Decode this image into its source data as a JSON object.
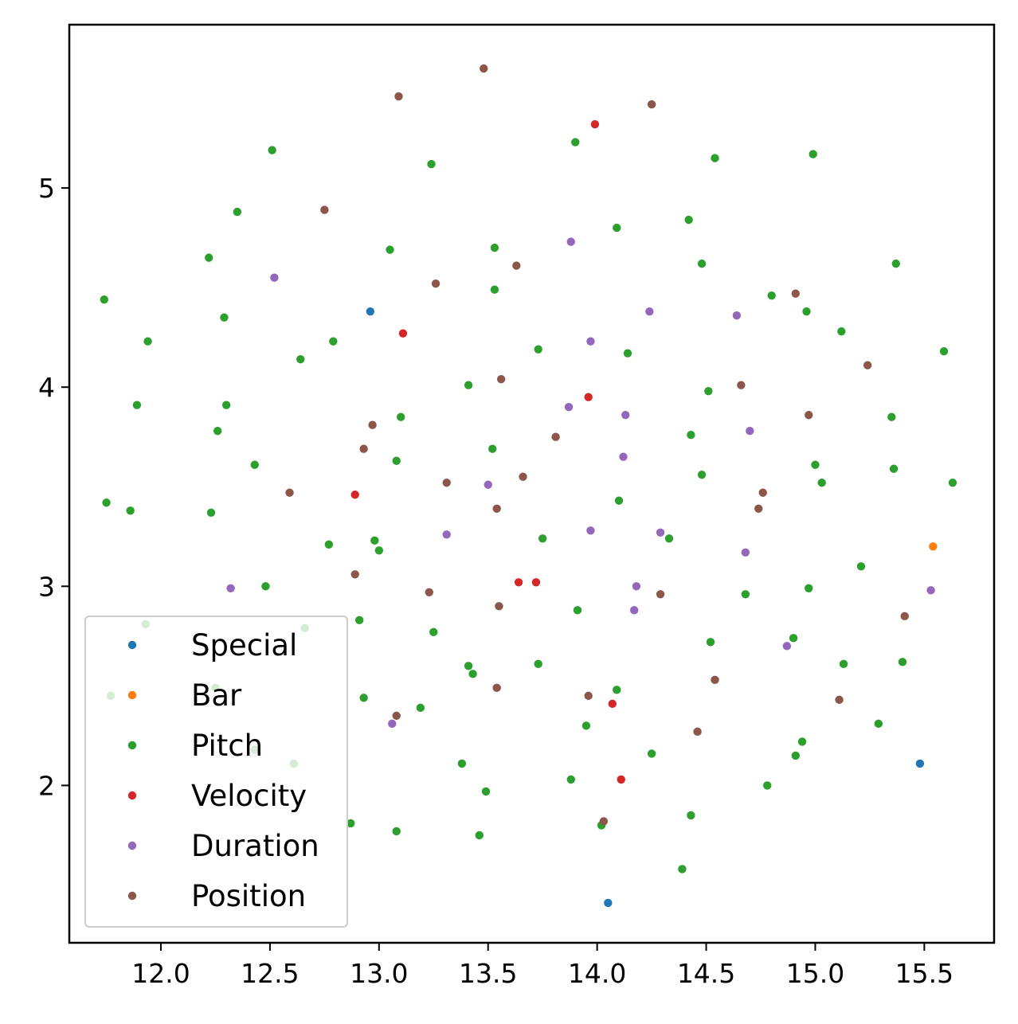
{
  "chart_data": {
    "type": "scatter",
    "title": "",
    "xlabel": "",
    "ylabel": "",
    "xlim": [
      11.58,
      15.82
    ],
    "ylim": [
      1.21,
      5.82
    ],
    "xticks": [
      "12.0",
      "12.5",
      "13.0",
      "13.5",
      "14.0",
      "14.5",
      "15.0",
      "15.5"
    ],
    "yticks": [
      "2",
      "3",
      "4",
      "5"
    ],
    "grid": false,
    "legend_position": "lower-left",
    "series": [
      {
        "name": "Special",
        "color": "#1f77b4",
        "points": [
          [
            12.96,
            4.38
          ],
          [
            15.48,
            2.11
          ],
          [
            14.05,
            1.41
          ]
        ]
      },
      {
        "name": "Bar",
        "color": "#ff7f0e",
        "points": [
          [
            15.54,
            3.2
          ]
        ]
      },
      {
        "name": "Pitch",
        "color": "#2ca02c",
        "points": [
          [
            12.51,
            5.19
          ],
          [
            13.24,
            5.12
          ],
          [
            13.9,
            5.23
          ],
          [
            14.54,
            5.15
          ],
          [
            14.99,
            5.17
          ],
          [
            12.35,
            4.88
          ],
          [
            12.22,
            4.65
          ],
          [
            13.05,
            4.69
          ],
          [
            13.53,
            4.7
          ],
          [
            14.09,
            4.8
          ],
          [
            14.42,
            4.84
          ],
          [
            14.48,
            4.62
          ],
          [
            15.37,
            4.62
          ],
          [
            11.74,
            4.44
          ],
          [
            13.53,
            4.49
          ],
          [
            12.29,
            4.35
          ],
          [
            14.8,
            4.46
          ],
          [
            14.96,
            4.38
          ],
          [
            11.94,
            4.23
          ],
          [
            12.79,
            4.23
          ],
          [
            12.64,
            4.14
          ],
          [
            13.73,
            4.19
          ],
          [
            14.14,
            4.17
          ],
          [
            15.12,
            4.28
          ],
          [
            15.59,
            4.18
          ],
          [
            13.41,
            4.01
          ],
          [
            11.89,
            3.91
          ],
          [
            12.3,
            3.91
          ],
          [
            13.1,
            3.85
          ],
          [
            14.51,
            3.98
          ],
          [
            15.35,
            3.85
          ],
          [
            12.26,
            3.78
          ],
          [
            13.52,
            3.69
          ],
          [
            14.43,
            3.76
          ],
          [
            12.43,
            3.61
          ],
          [
            13.08,
            3.63
          ],
          [
            14.48,
            3.56
          ],
          [
            15.0,
            3.61
          ],
          [
            15.36,
            3.59
          ],
          [
            15.03,
            3.52
          ],
          [
            15.63,
            3.52
          ],
          [
            11.75,
            3.42
          ],
          [
            11.86,
            3.38
          ],
          [
            12.23,
            3.37
          ],
          [
            14.1,
            3.43
          ],
          [
            12.77,
            3.21
          ],
          [
            12.98,
            3.23
          ],
          [
            13.0,
            3.18
          ],
          [
            13.75,
            3.24
          ],
          [
            14.33,
            3.24
          ],
          [
            12.48,
            3.0
          ],
          [
            15.21,
            3.1
          ],
          [
            14.68,
            2.96
          ],
          [
            14.97,
            2.99
          ],
          [
            11.93,
            2.81
          ],
          [
            12.66,
            2.79
          ],
          [
            12.91,
            2.83
          ],
          [
            13.25,
            2.77
          ],
          [
            13.91,
            2.88
          ],
          [
            14.9,
            2.74
          ],
          [
            14.52,
            2.72
          ],
          [
            13.41,
            2.6
          ],
          [
            13.43,
            2.56
          ],
          [
            13.73,
            2.61
          ],
          [
            15.13,
            2.61
          ],
          [
            15.4,
            2.62
          ],
          [
            12.25,
            2.49
          ],
          [
            11.77,
            2.45
          ],
          [
            12.93,
            2.44
          ],
          [
            13.19,
            2.39
          ],
          [
            14.09,
            2.48
          ],
          [
            13.95,
            2.3
          ],
          [
            15.29,
            2.31
          ],
          [
            12.43,
            2.18
          ],
          [
            12.61,
            2.11
          ],
          [
            13.38,
            2.11
          ],
          [
            14.25,
            2.16
          ],
          [
            14.91,
            2.15
          ],
          [
            14.94,
            2.22
          ],
          [
            13.88,
            2.03
          ],
          [
            13.49,
            1.97
          ],
          [
            14.78,
            2.0
          ],
          [
            12.87,
            1.81
          ],
          [
            13.08,
            1.77
          ],
          [
            13.46,
            1.75
          ],
          [
            14.02,
            1.8
          ],
          [
            14.43,
            1.85
          ],
          [
            14.39,
            1.58
          ]
        ]
      },
      {
        "name": "Velocity",
        "color": "#d62728",
        "points": [
          [
            13.99,
            5.32
          ],
          [
            13.11,
            4.27
          ],
          [
            13.96,
            3.95
          ],
          [
            12.89,
            3.46
          ],
          [
            13.64,
            3.02
          ],
          [
            13.72,
            3.02
          ],
          [
            14.07,
            2.41
          ],
          [
            14.11,
            2.03
          ]
        ]
      },
      {
        "name": "Duration",
        "color": "#9467bd",
        "points": [
          [
            13.88,
            4.73
          ],
          [
            12.52,
            4.55
          ],
          [
            14.24,
            4.38
          ],
          [
            14.64,
            4.36
          ],
          [
            13.97,
            4.23
          ],
          [
            13.87,
            3.9
          ],
          [
            14.13,
            3.86
          ],
          [
            14.7,
            3.78
          ],
          [
            14.12,
            3.65
          ],
          [
            13.5,
            3.51
          ],
          [
            13.31,
            3.26
          ],
          [
            13.97,
            3.28
          ],
          [
            14.29,
            3.27
          ],
          [
            14.68,
            3.17
          ],
          [
            12.32,
            2.99
          ],
          [
            14.18,
            3.0
          ],
          [
            15.53,
            2.98
          ],
          [
            14.17,
            2.88
          ],
          [
            14.87,
            2.7
          ],
          [
            13.06,
            2.31
          ]
        ]
      },
      {
        "name": "Position",
        "color": "#8c564b",
        "points": [
          [
            13.48,
            5.6
          ],
          [
            13.09,
            5.46
          ],
          [
            14.25,
            5.42
          ],
          [
            12.75,
            4.89
          ],
          [
            13.63,
            4.61
          ],
          [
            13.26,
            4.52
          ],
          [
            14.91,
            4.47
          ],
          [
            15.24,
            4.11
          ],
          [
            13.56,
            4.04
          ],
          [
            14.66,
            4.01
          ],
          [
            14.97,
            3.86
          ],
          [
            12.97,
            3.81
          ],
          [
            13.81,
            3.75
          ],
          [
            12.93,
            3.69
          ],
          [
            13.31,
            3.52
          ],
          [
            13.66,
            3.55
          ],
          [
            12.59,
            3.47
          ],
          [
            14.76,
            3.47
          ],
          [
            13.54,
            3.39
          ],
          [
            14.74,
            3.39
          ],
          [
            12.89,
            3.06
          ],
          [
            13.23,
            2.97
          ],
          [
            14.29,
            2.96
          ],
          [
            13.55,
            2.9
          ],
          [
            15.41,
            2.85
          ],
          [
            13.54,
            2.49
          ],
          [
            14.54,
            2.53
          ],
          [
            13.96,
            2.45
          ],
          [
            15.11,
            2.43
          ],
          [
            13.08,
            2.35
          ],
          [
            14.46,
            2.27
          ],
          [
            14.03,
            1.82
          ]
        ]
      }
    ]
  }
}
